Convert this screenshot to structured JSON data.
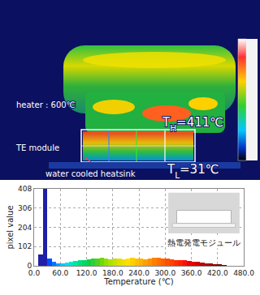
{
  "thermal_image": {
    "heater_label": "heater : 600℃",
    "module_label": "TE module",
    "heatsink_label": "water cooled heatsink",
    "hot_label": {
      "before": "T",
      "sub": "H",
      "after": "=411℃"
    },
    "cold_label": {
      "before": "T",
      "sub": "L",
      "after": "=31℃"
    }
  },
  "chart_data": {
    "type": "histogram",
    "x_label": "Temperature (℃)",
    "y_label": "pixel value",
    "bins": [
      0,
      10,
      20,
      30,
      40,
      50,
      60,
      70,
      80,
      90,
      100,
      110,
      120,
      130,
      140,
      150,
      160,
      170,
      180,
      190,
      200,
      210,
      220,
      230,
      240,
      250,
      260,
      270,
      280,
      290,
      300,
      310,
      320,
      330,
      340,
      350,
      360,
      370,
      380,
      390,
      400,
      410,
      420,
      430,
      440
    ],
    "values": [
      0,
      60,
      408,
      40,
      20,
      15,
      15,
      18,
      22,
      25,
      28,
      30,
      35,
      38,
      40,
      42,
      38,
      35,
      38,
      40,
      35,
      38,
      42,
      40,
      38,
      35,
      40,
      42,
      45,
      40,
      38,
      35,
      32,
      30,
      28,
      25,
      22,
      20,
      18,
      15,
      12,
      8,
      5,
      2
    ],
    "colors": [
      "#1a2bd0",
      "#1f1fa8",
      "#1f1fa8",
      "#0050ff",
      "#0078ff",
      "#00a0ff",
      "#00c8ff",
      "#00e0f0",
      "#00e6c8",
      "#00e6a0",
      "#00e080",
      "#00d860",
      "#10d040",
      "#30d030",
      "#50d020",
      "#70d810",
      "#90e000",
      "#b0e000",
      "#c8e000",
      "#e0e000",
      "#f0e000",
      "#ffe000",
      "#ffd000",
      "#ffc000",
      "#ffb000",
      "#ffa000",
      "#ff9000",
      "#ff8000",
      "#ff7000",
      "#ff6000",
      "#ff5000",
      "#ff4000",
      "#ff3000",
      "#ff2000",
      "#f81010",
      "#f00000",
      "#e00000",
      "#d00000",
      "#c00000",
      "#b00000",
      "#a00000",
      "#900000",
      "#800000",
      "#700000"
    ],
    "xlim": [
      0,
      480
    ],
    "xticks": [
      {
        "value": 0,
        "label": "0.0"
      },
      {
        "value": 60,
        "label": "60.0"
      },
      {
        "value": 120,
        "label": "120.0"
      },
      {
        "value": 180,
        "label": "180.0"
      },
      {
        "value": 240,
        "label": "240.0"
      },
      {
        "value": 300,
        "label": "300.0"
      },
      {
        "value": 360,
        "label": "360.0"
      },
      {
        "value": 420,
        "label": "420.0"
      },
      {
        "value": 480,
        "label": "480.0"
      }
    ],
    "ylim": [
      0,
      408
    ],
    "yticks": [
      0,
      102,
      204,
      306,
      408
    ],
    "grid": true,
    "annotations": [
      {
        "text": "熱電発電モジュール"
      }
    ]
  }
}
